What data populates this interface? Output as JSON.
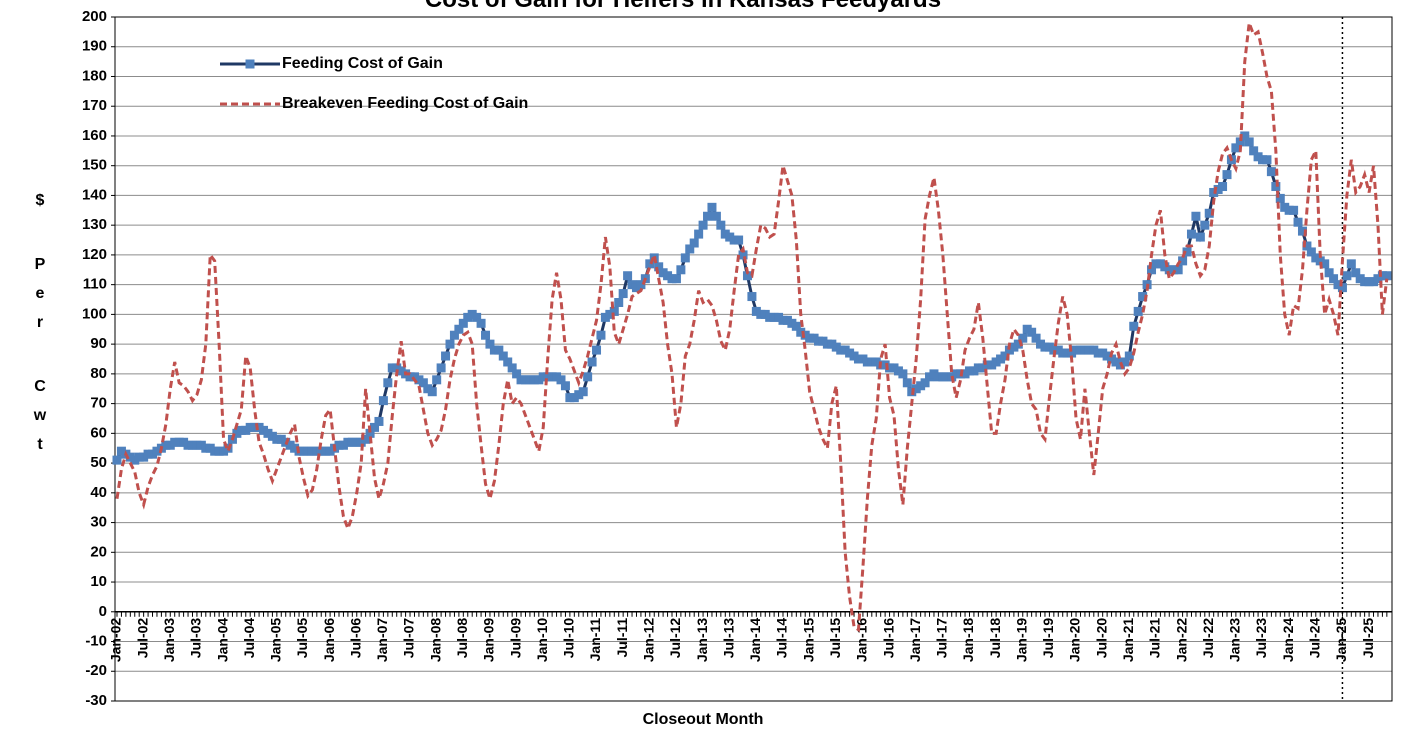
{
  "chart_data": {
    "type": "line",
    "title": "Cost of Gain for Heifers in Kansas Feedyards",
    "x_label": "Closeout Month",
    "y_label": "$ Per Cwt",
    "ylim": [
      -30,
      200
    ],
    "yticks": [
      200,
      190,
      180,
      170,
      160,
      150,
      140,
      130,
      120,
      110,
      100,
      90,
      80,
      70,
      60,
      50,
      40,
      30,
      20,
      10,
      0,
      -10,
      -20,
      -30
    ],
    "grid": true,
    "legend": "top-left",
    "vline_at": "Jan-25",
    "categories": [
      "Jan-02",
      null,
      null,
      null,
      null,
      null,
      "Jul-02",
      null,
      null,
      null,
      null,
      null,
      "Jan-03",
      null,
      null,
      null,
      null,
      null,
      "Jul-03",
      null,
      null,
      null,
      null,
      null,
      "Jan-04",
      null,
      null,
      null,
      null,
      null,
      "Jul-04",
      null,
      null,
      null,
      null,
      null,
      "Jan-05",
      null,
      null,
      null,
      null,
      null,
      "Jul-05",
      null,
      null,
      null,
      null,
      null,
      "Jan-06",
      null,
      null,
      null,
      null,
      null,
      "Jul-06",
      null,
      null,
      null,
      null,
      null,
      "Jan-07",
      null,
      null,
      null,
      null,
      null,
      "Jul-07",
      null,
      null,
      null,
      null,
      null,
      "Jan-08",
      null,
      null,
      null,
      null,
      null,
      "Jul-08",
      null,
      null,
      null,
      null,
      null,
      "Jan-09",
      null,
      null,
      null,
      null,
      null,
      "Jul-09",
      null,
      null,
      null,
      null,
      null,
      "Jan-10",
      null,
      null,
      null,
      null,
      null,
      "Jul-10",
      null,
      null,
      null,
      null,
      null,
      "Jan-11",
      null,
      null,
      null,
      null,
      null,
      "Jul-11",
      null,
      null,
      null,
      null,
      null,
      "Jan-12",
      null,
      null,
      null,
      null,
      null,
      "Jul-12",
      null,
      null,
      null,
      null,
      null,
      "Jan-13",
      null,
      null,
      null,
      null,
      null,
      "Jul-13",
      null,
      null,
      null,
      null,
      null,
      "Jan-14",
      null,
      null,
      null,
      null,
      null,
      "Jul-14",
      null,
      null,
      null,
      null,
      null,
      "Jan-15",
      null,
      null,
      null,
      null,
      null,
      "Jul-15",
      null,
      null,
      null,
      null,
      null,
      "Jan-16",
      null,
      null,
      null,
      null,
      null,
      "Jul-16",
      null,
      null,
      null,
      null,
      null,
      "Jan-17",
      null,
      null,
      null,
      null,
      null,
      "Jul-17",
      null,
      null,
      null,
      null,
      null,
      "Jan-18",
      null,
      null,
      null,
      null,
      null,
      "Jul-18",
      null,
      null,
      null,
      null,
      null,
      "Jan-19",
      null,
      null,
      null,
      null,
      null,
      "Jul-19",
      null,
      null,
      null,
      null,
      null,
      "Jan-20",
      null,
      null,
      null,
      null,
      null,
      "Jul-20",
      null,
      null,
      null,
      null,
      null,
      "Jan-21",
      null,
      null,
      null,
      null,
      null,
      "Jul-21",
      null,
      null,
      null,
      null,
      null,
      "Jan-22",
      null,
      null,
      null,
      null,
      null,
      "Jul-22",
      null,
      null,
      null,
      null,
      null,
      "Jan-23",
      null,
      null,
      null,
      null,
      null,
      "Jul-23",
      null,
      null,
      null,
      null,
      null,
      "Jan-24",
      null,
      null,
      null,
      null,
      null,
      "Jul-24",
      null,
      null,
      null,
      null,
      null,
      "Jan-25",
      null,
      null,
      null,
      null,
      null,
      "Jul-25",
      null,
      null,
      null,
      null
    ],
    "series": [
      {
        "name": "Feeding Cost of Gain",
        "color": "#1f3864",
        "marker_color": "#4f81bd",
        "style": "solid",
        "marker": "square",
        "values": [
          51,
          54,
          53,
          52,
          51,
          52,
          52,
          53,
          53,
          54,
          55,
          56,
          56,
          57,
          57,
          57,
          56,
          56,
          56,
          56,
          55,
          55,
          54,
          54,
          54,
          55,
          58,
          60,
          61,
          61,
          62,
          62,
          62,
          61,
          60,
          59,
          58,
          58,
          57,
          56,
          55,
          54,
          54,
          54,
          54,
          54,
          54,
          54,
          54,
          55,
          56,
          56,
          57,
          57,
          57,
          57,
          58,
          60,
          62,
          64,
          71,
          77,
          82,
          82,
          81,
          80,
          79,
          79,
          78,
          77,
          75,
          74,
          78,
          82,
          86,
          90,
          93,
          95,
          97,
          99,
          100,
          99,
          97,
          93,
          90,
          88,
          88,
          86,
          84,
          82,
          80,
          78,
          78,
          78,
          78,
          78,
          79,
          79,
          79,
          79,
          78,
          76,
          72,
          72,
          73,
          74,
          79,
          84,
          88,
          93,
          99,
          100,
          101,
          104,
          107,
          113,
          110,
          109,
          110,
          112,
          117,
          119,
          116,
          114,
          113,
          112,
          112,
          115,
          119,
          122,
          124,
          127,
          130,
          133,
          136,
          133,
          130,
          127,
          126,
          125,
          125,
          120,
          113,
          106,
          101,
          100,
          100,
          99,
          99,
          99,
          98,
          98,
          97,
          96,
          94,
          93,
          92,
          92,
          91,
          91,
          90,
          90,
          89,
          88,
          88,
          87,
          86,
          85,
          85,
          84,
          84,
          84,
          83,
          83,
          82,
          82,
          81,
          80,
          77,
          74,
          75,
          76,
          77,
          79,
          80,
          79,
          79,
          79,
          79,
          80,
          80,
          80,
          81,
          81,
          82,
          82,
          83,
          83,
          84,
          85,
          86,
          88,
          89,
          90,
          92,
          95,
          94,
          92,
          90,
          89,
          89,
          88,
          88,
          87,
          87,
          87,
          88,
          88,
          88,
          88,
          88,
          87,
          87,
          86,
          85,
          84,
          83,
          84,
          86,
          96,
          101,
          106,
          110,
          115,
          117,
          117,
          116,
          115,
          115,
          115,
          118,
          121,
          127,
          133,
          126,
          130,
          134,
          141,
          142,
          143,
          147,
          152,
          156,
          158,
          160,
          158,
          155,
          153,
          152,
          152,
          148,
          143,
          139,
          136,
          135,
          135,
          131,
          128,
          123,
          121,
          119,
          118,
          117,
          114,
          112,
          110,
          109,
          113,
          117,
          114,
          112,
          111,
          111,
          111,
          112,
          113,
          113
        ]
      },
      {
        "name": "Breakeven Feeding Cost of Gain",
        "color": "#c0504d",
        "style": "dashed",
        "values": [
          38,
          48,
          53,
          50,
          47,
          40,
          36,
          42,
          46,
          49,
          55,
          63,
          75,
          84,
          77,
          76,
          74,
          71,
          73,
          78,
          90,
          120,
          118,
          90,
          58,
          54,
          58,
          63,
          68,
          86,
          82,
          68,
          57,
          53,
          48,
          44,
          48,
          52,
          56,
          60,
          63,
          52,
          45,
          39,
          41,
          48,
          58,
          66,
          68,
          55,
          42,
          32,
          28,
          32,
          40,
          50,
          75,
          60,
          45,
          38,
          43,
          50,
          66,
          80,
          91,
          80,
          80,
          78,
          76,
          68,
          60,
          56,
          58,
          61,
          68,
          78,
          85,
          90,
          93,
          94,
          90,
          70,
          56,
          43,
          38,
          44,
          56,
          70,
          78,
          70,
          72,
          70,
          66,
          62,
          58,
          54,
          62,
          85,
          105,
          114,
          105,
          88,
          85,
          81,
          77,
          81,
          86,
          92,
          98,
          110,
          126,
          116,
          94,
          90,
          95,
          100,
          106,
          107,
          108,
          112,
          116,
          120,
          112,
          104,
          90,
          80,
          62,
          70,
          86,
          90,
          98,
          108,
          104,
          105,
          103,
          98,
          91,
          88,
          95,
          108,
          120,
          122,
          114,
          113,
          122,
          130,
          129,
          126,
          127,
          138,
          150,
          145,
          140,
          125,
          100,
          88,
          74,
          68,
          62,
          58,
          55,
          70,
          76,
          50,
          20,
          5,
          -5,
          -6,
          15,
          38,
          56,
          65,
          85,
          90,
          72,
          66,
          48,
          36,
          55,
          70,
          85,
          105,
          132,
          140,
          146,
          135,
          120,
          100,
          80,
          72,
          78,
          88,
          92,
          95,
          104,
          92,
          76,
          60,
          60,
          70,
          78,
          90,
          95,
          93,
          88,
          78,
          70,
          68,
          60,
          58,
          72,
          85,
          97,
          106,
          100,
          85,
          65,
          58,
          75,
          60,
          46,
          60,
          75,
          80,
          87,
          90,
          84,
          80,
          82,
          87,
          94,
          100,
          108,
          120,
          130,
          135,
          120,
          112,
          114,
          117,
          119,
          123,
          123,
          117,
          113,
          115,
          123,
          138,
          148,
          154,
          156,
          152,
          149,
          155,
          185,
          198,
          194,
          195,
          188,
          180,
          175,
          155,
          120,
          100,
          93,
          103,
          102,
          115,
          135,
          152,
          155,
          120,
          100,
          105,
          100,
          93,
          118,
          140,
          152,
          141,
          143,
          147,
          141,
          150,
          130,
          100,
          112
        ]
      }
    ]
  }
}
